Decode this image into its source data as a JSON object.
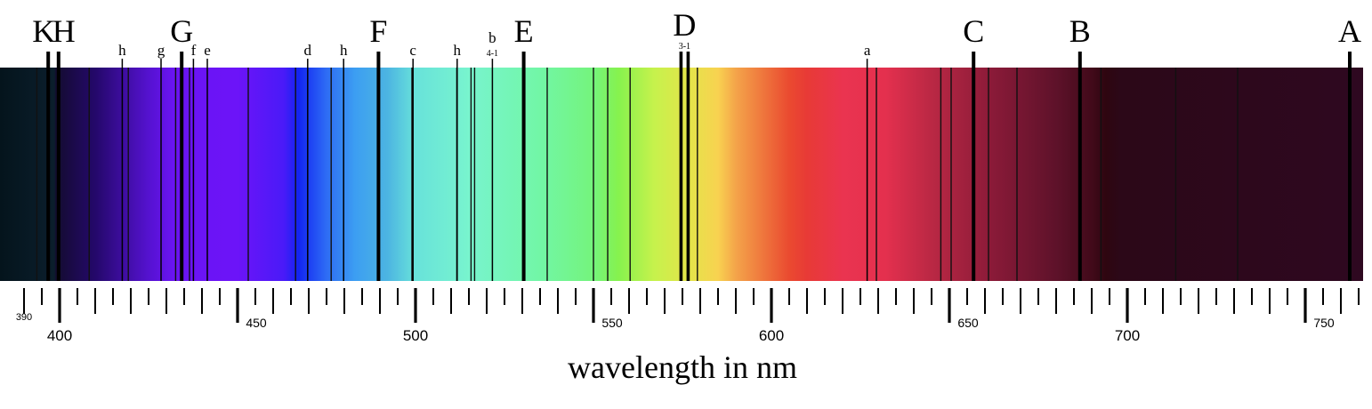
{
  "axis": {
    "title": "wavelength in nm",
    "min": 387,
    "max": 770,
    "major_ticks": [
      400,
      500,
      600,
      700
    ],
    "medium_ticks": [
      450,
      550,
      650,
      750
    ],
    "minor_step": 5,
    "small_labels": [
      {
        "value": 390,
        "text": "390"
      },
      {
        "value": 450,
        "text": "450"
      },
      {
        "value": 550,
        "text": "550"
      },
      {
        "value": 650,
        "text": "650"
      },
      {
        "value": 750,
        "text": "750"
      }
    ],
    "major_labels": [
      {
        "value": 400,
        "text": "400"
      },
      {
        "value": 500,
        "text": "500"
      },
      {
        "value": 600,
        "text": "600"
      },
      {
        "value": 700,
        "text": "700"
      }
    ]
  },
  "spectrum_colors": [
    {
      "wl": 387,
      "color": "#04141c"
    },
    {
      "wl": 398.5,
      "color": "#0b1e2c"
    },
    {
      "wl": 399,
      "color": "#140c30"
    },
    {
      "wl": 410,
      "color": "#24086a"
    },
    {
      "wl": 425,
      "color": "#5512d0"
    },
    {
      "wl": 432,
      "color": "#6a14f2"
    },
    {
      "wl": 450,
      "color": "#6c14f8"
    },
    {
      "wl": 463,
      "color": "#4a1af8"
    },
    {
      "wl": 467,
      "color": "#1224f2"
    },
    {
      "wl": 475,
      "color": "#2e6cf4"
    },
    {
      "wl": 483,
      "color": "#3c9ef2"
    },
    {
      "wl": 492,
      "color": "#4cb4e2"
    },
    {
      "wl": 500,
      "color": "#68e2da"
    },
    {
      "wl": 515,
      "color": "#78f4ce"
    },
    {
      "wl": 535,
      "color": "#72f6a6"
    },
    {
      "wl": 550,
      "color": "#74f47c"
    },
    {
      "wl": 557,
      "color": "#86f24e"
    },
    {
      "wl": 567,
      "color": "#c6f24c"
    },
    {
      "wl": 577,
      "color": "#e4e44a"
    },
    {
      "wl": 585,
      "color": "#f8d250"
    },
    {
      "wl": 590,
      "color": "#f4a44a"
    },
    {
      "wl": 605,
      "color": "#ea4a30"
    },
    {
      "wl": 610,
      "color": "#e83a36"
    },
    {
      "wl": 620,
      "color": "#ea3450"
    },
    {
      "wl": 632,
      "color": "#e4304e"
    },
    {
      "wl": 645,
      "color": "#ba2844"
    },
    {
      "wl": 662,
      "color": "#8a1a38"
    },
    {
      "wl": 680,
      "color": "#5e122a"
    },
    {
      "wl": 690,
      "color": "#420a1a"
    },
    {
      "wl": 694,
      "color": "#2e0610"
    },
    {
      "wl": 698,
      "color": "#2c0818"
    },
    {
      "wl": 770,
      "color": "#2e0820"
    }
  ],
  "thin_lines": [
    393.6,
    408.3,
    419.3,
    432.6,
    436.5,
    453,
    466.3,
    476.3,
    499,
    511.6,
    515.6,
    516.6,
    537,
    550,
    554,
    560.3,
    579.2,
    629.5,
    647.6,
    650.5,
    661,
    669,
    692.6,
    713.6,
    731
  ],
  "labeled_lines": [
    {
      "wl": 396.8,
      "label": "K",
      "weight": "heavy",
      "size": "large"
    },
    {
      "wl": 399.7,
      "label": "H",
      "weight": "heavy",
      "size": "large"
    },
    {
      "wl": 417.6,
      "label": "h",
      "weight": "thin",
      "size": "small"
    },
    {
      "wl": 428.5,
      "label": "g",
      "weight": "thin",
      "size": "small"
    },
    {
      "wl": 434.3,
      "label": "G",
      "weight": "heavy",
      "size": "large"
    },
    {
      "wl": 437.6,
      "label": "f",
      "weight": "thin",
      "size": "small"
    },
    {
      "wl": 441.5,
      "label": "e",
      "weight": "thin",
      "size": "small"
    },
    {
      "wl": 469.7,
      "label": "d",
      "weight": "thin",
      "size": "small"
    },
    {
      "wl": 479.8,
      "label": "h",
      "weight": "thin",
      "size": "small"
    },
    {
      "wl": 489.6,
      "label": "F",
      "weight": "heavy",
      "size": "large"
    },
    {
      "wl": 499.3,
      "label": "c",
      "weight": "thin",
      "size": "small"
    },
    {
      "wl": 511.7,
      "label": "h",
      "weight": "thin",
      "size": "small"
    },
    {
      "wl": 521.6,
      "label": "b",
      "weight": "thin",
      "size": "small",
      "sub": "4-1"
    },
    {
      "wl": 530.4,
      "label": "E",
      "weight": "heavy",
      "size": "large"
    },
    {
      "wl": 626.9,
      "label": "a",
      "weight": "thin",
      "size": "small"
    },
    {
      "wl": 656.8,
      "label": "C",
      "weight": "heavy",
      "size": "large"
    },
    {
      "wl": 686.7,
      "label": "B",
      "weight": "heavy",
      "size": "large"
    },
    {
      "wl": 762.5,
      "label": "A",
      "weight": "heavy",
      "size": "large"
    }
  ],
  "d_group": {
    "label": "D",
    "sub": "3-1",
    "lines": [
      574.6,
      576.6
    ]
  }
}
